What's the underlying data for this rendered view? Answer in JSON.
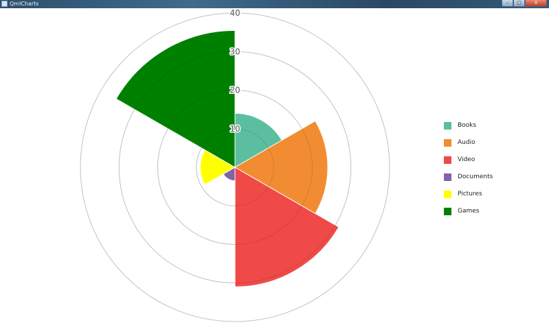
{
  "window": {
    "title": "QmlCharts",
    "minimize_label": "–",
    "maximize_label": "□",
    "close_label": "X"
  },
  "chart_data": {
    "type": "polar-area",
    "title": "",
    "radial_axis": {
      "min": 0,
      "max": 40,
      "ticks": [
        10,
        20,
        30,
        40
      ],
      "labels": [
        "10",
        "20",
        "30",
        "40"
      ]
    },
    "grid": true,
    "legend_position": "right",
    "categories": [
      "Books",
      "Audio",
      "Video",
      "Documents",
      "Pictures",
      "Games"
    ],
    "values": [
      14,
      24,
      31,
      3.5,
      9,
      35.5
    ],
    "colors": [
      "#5bbf9f",
      "#f28c32",
      "#f04a48",
      "#8064a8",
      "#ffff00",
      "#008000"
    ],
    "sector_start_angles_deg": [
      0,
      60,
      120,
      180,
      240,
      300
    ]
  }
}
